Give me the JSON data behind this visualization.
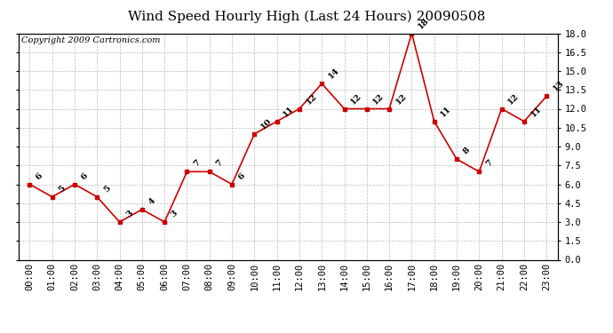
{
  "title": "Wind Speed Hourly High (Last 24 Hours) 20090508",
  "copyright": "Copyright 2009 Cartronics.com",
  "hours": [
    "00:00",
    "01:00",
    "02:00",
    "03:00",
    "04:00",
    "05:00",
    "06:00",
    "07:00",
    "08:00",
    "09:00",
    "10:00",
    "11:00",
    "12:00",
    "13:00",
    "14:00",
    "15:00",
    "16:00",
    "17:00",
    "18:00",
    "19:00",
    "20:00",
    "21:00",
    "22:00",
    "23:00"
  ],
  "values": [
    6,
    5,
    6,
    5,
    3,
    4,
    3,
    7,
    7,
    6,
    10,
    11,
    12,
    14,
    12,
    12,
    12,
    18,
    11,
    8,
    7,
    12,
    11,
    13
  ],
  "line_color": "#cc0000",
  "marker_color": "#cc0000",
  "bg_color": "#ffffff",
  "grid_color": "#bbbbbb",
  "yticks": [
    0.0,
    1.5,
    3.0,
    4.5,
    6.0,
    7.5,
    9.0,
    10.5,
    12.0,
    13.5,
    15.0,
    16.5,
    18.0
  ],
  "title_fontsize": 11,
  "label_fontsize": 7.5,
  "copyright_fontsize": 7
}
